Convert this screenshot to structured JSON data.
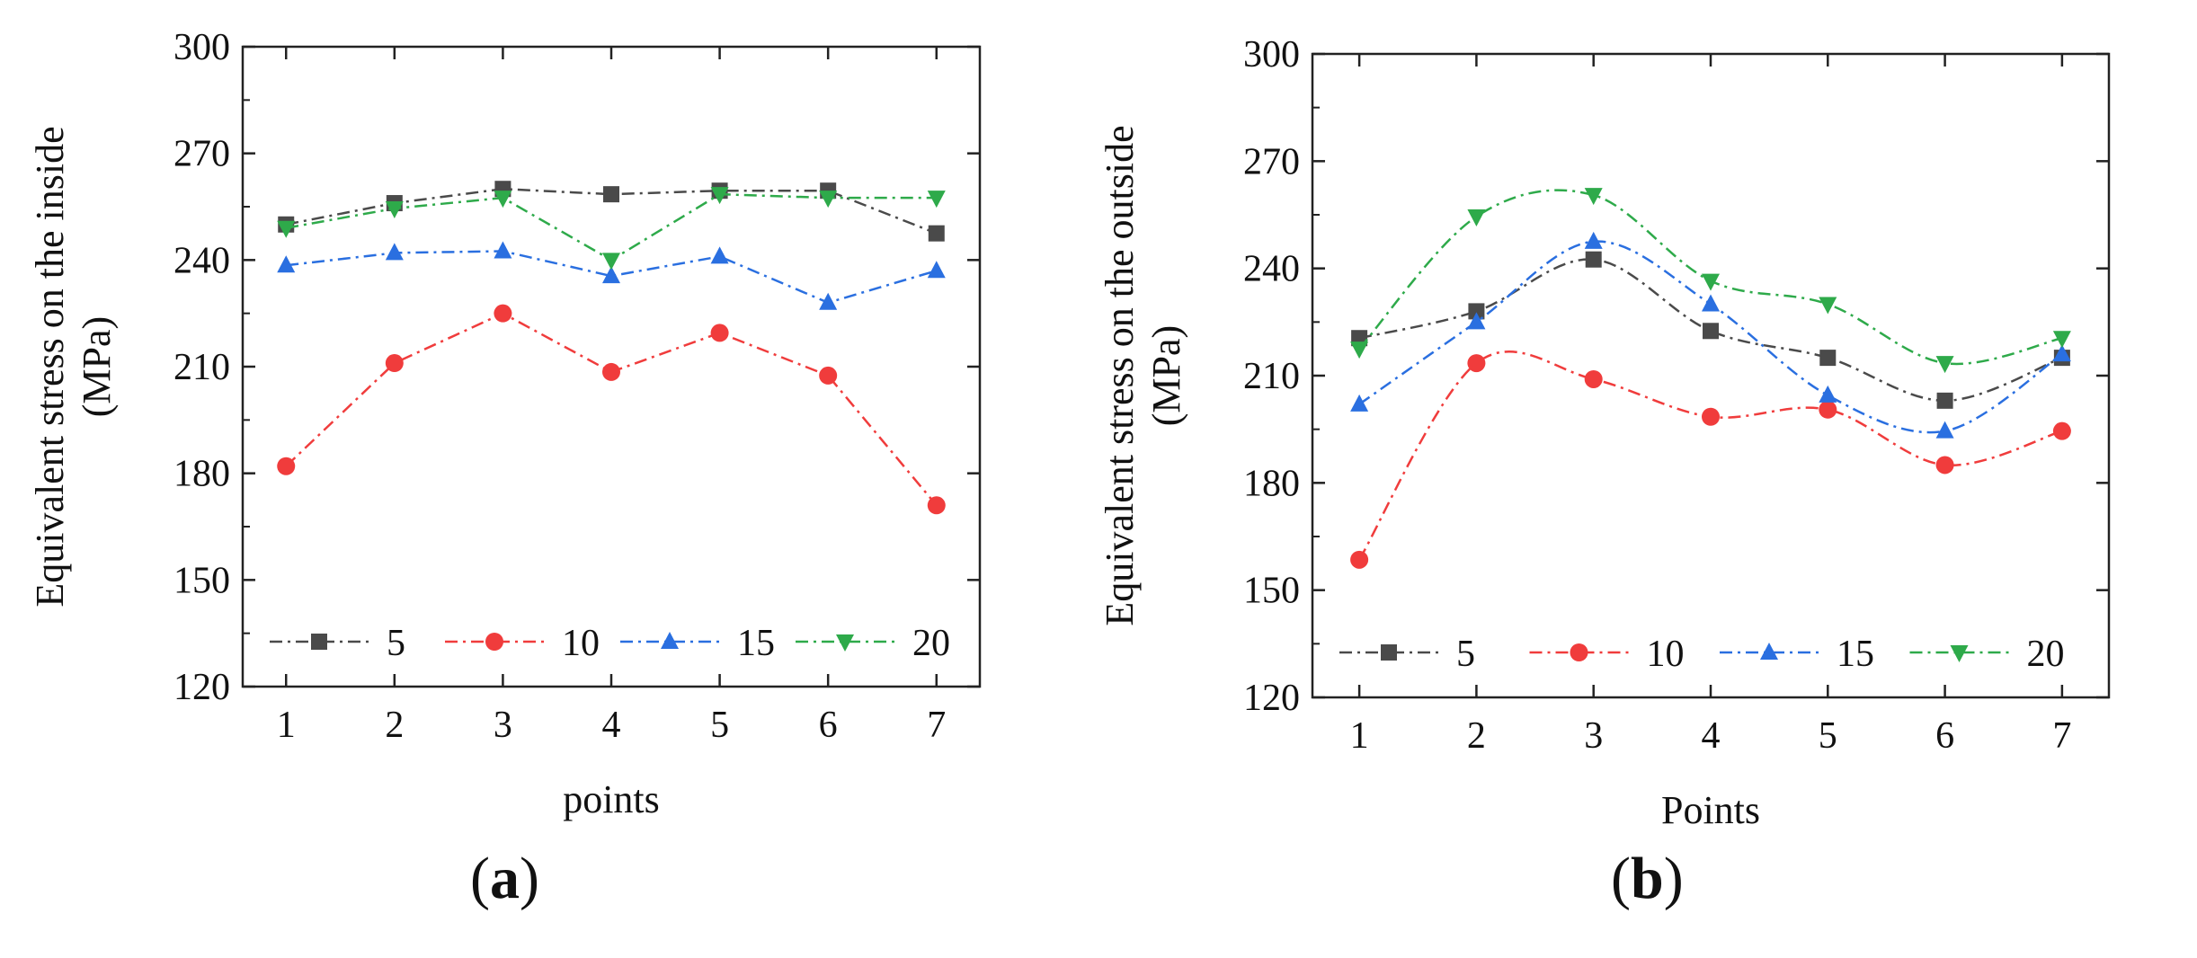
{
  "chart_data": [
    {
      "type": "line",
      "panel": "a",
      "caption_open": "(",
      "caption_letter": "a",
      "caption_close": ")",
      "title": "",
      "xlabel": "points",
      "ylabel_line1": "Equivalent stress on the inside",
      "ylabel_line2": "(MPa)",
      "ylim": [
        120,
        300
      ],
      "yticks": [
        120,
        150,
        180,
        210,
        240,
        270,
        300
      ],
      "xlim": [
        0.6,
        7.4
      ],
      "x": [
        1,
        2,
        3,
        4,
        5,
        6,
        7
      ],
      "legend_position": "bottom",
      "series": [
        {
          "name": "5",
          "color": "#4a4a4a",
          "marker": "square",
          "values": [
            250,
            256,
            260,
            258.5,
            259.5,
            259.5,
            247.5
          ]
        },
        {
          "name": "10",
          "color": "#f03c3c",
          "marker": "circle",
          "values": [
            182,
            211,
            225,
            208.5,
            219.5,
            207.5,
            171
          ]
        },
        {
          "name": "15",
          "color": "#2a6fe0",
          "marker": "triangle-up",
          "values": [
            238.5,
            242,
            242.5,
            235.5,
            241,
            228,
            237
          ]
        },
        {
          "name": "20",
          "color": "#2eaa4a",
          "marker": "triangle-down",
          "values": [
            249,
            254.5,
            257.5,
            240,
            258.5,
            257.5,
            257.5
          ]
        }
      ]
    },
    {
      "type": "line",
      "panel": "b",
      "caption_open": "(",
      "caption_letter": "b",
      "caption_close": ")",
      "title": "",
      "xlabel": "Points",
      "ylabel_line1": "Equivalent stress on the outside",
      "ylabel_line2": "(MPa)",
      "ylim": [
        120,
        300
      ],
      "yticks": [
        120,
        150,
        180,
        210,
        240,
        270,
        300
      ],
      "xlim": [
        0.6,
        7.4
      ],
      "x": [
        1,
        2,
        3,
        4,
        5,
        6,
        7
      ],
      "legend_position": "bottom",
      "series": [
        {
          "name": "5",
          "color": "#4a4a4a",
          "marker": "square",
          "values": [
            220.5,
            228,
            242.5,
            222.5,
            215,
            203,
            215
          ]
        },
        {
          "name": "10",
          "color": "#f03c3c",
          "marker": "circle",
          "values": [
            158.5,
            213.5,
            209,
            198.5,
            200.5,
            185,
            194.5
          ]
        },
        {
          "name": "15",
          "color": "#2a6fe0",
          "marker": "triangle-up",
          "values": [
            202,
            225,
            247.5,
            230,
            204.5,
            194.5,
            216
          ]
        },
        {
          "name": "20",
          "color": "#2eaa4a",
          "marker": "triangle-down",
          "values": [
            217.5,
            254.5,
            260.5,
            236.5,
            230,
            213.5,
            220.5
          ]
        }
      ]
    }
  ]
}
